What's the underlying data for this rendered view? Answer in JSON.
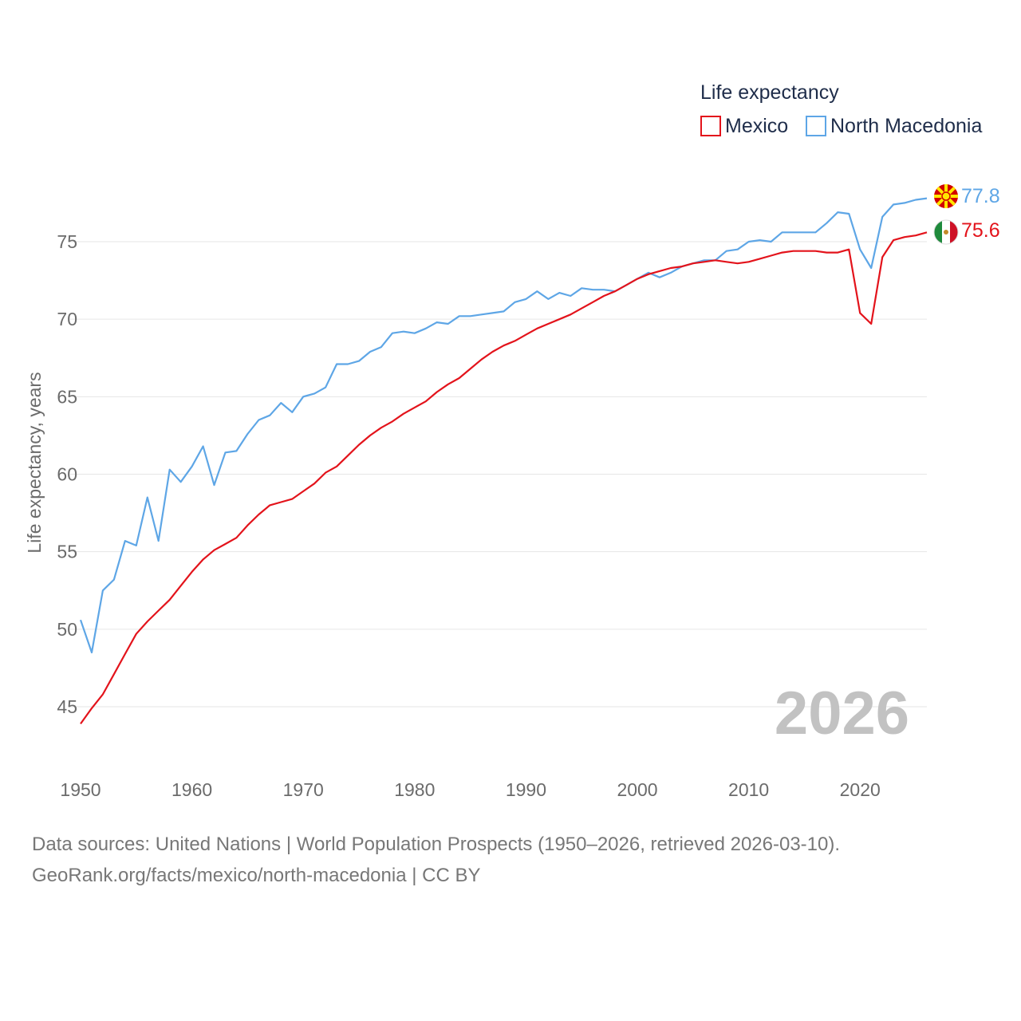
{
  "chart_data": {
    "type": "line",
    "title": "",
    "legend_title": "Life expectancy",
    "legend_position": "top-right",
    "xlabel": "",
    "ylabel": "Life expectancy, years",
    "xlim": [
      1950,
      2026
    ],
    "ylim": [
      42.5,
      79
    ],
    "x_ticks": [
      1950,
      1960,
      1970,
      1980,
      1990,
      2000,
      2010,
      2020
    ],
    "y_ticks": [
      45,
      50,
      55,
      60,
      65,
      70,
      75
    ],
    "grid": true,
    "big_year": "2026",
    "x": [
      1950,
      1951,
      1952,
      1953,
      1954,
      1955,
      1956,
      1957,
      1958,
      1959,
      1960,
      1961,
      1962,
      1963,
      1964,
      1965,
      1966,
      1967,
      1968,
      1969,
      1970,
      1971,
      1972,
      1973,
      1974,
      1975,
      1976,
      1977,
      1978,
      1979,
      1980,
      1981,
      1982,
      1983,
      1984,
      1985,
      1986,
      1987,
      1988,
      1989,
      1990,
      1991,
      1992,
      1993,
      1994,
      1995,
      1996,
      1997,
      1998,
      1999,
      2000,
      2001,
      2002,
      2003,
      2004,
      2005,
      2006,
      2007,
      2008,
      2009,
      2010,
      2011,
      2012,
      2013,
      2014,
      2015,
      2016,
      2017,
      2018,
      2019,
      2020,
      2021,
      2022,
      2023,
      2024,
      2025,
      2026
    ],
    "series": [
      {
        "name": "Mexico",
        "color": "#e3131b",
        "end_label": "75.6",
        "flag": "mexico-flag-icon",
        "values": [
          43.9,
          44.9,
          45.8,
          47.1,
          48.4,
          49.7,
          50.5,
          51.2,
          51.9,
          52.8,
          53.7,
          54.5,
          55.1,
          55.5,
          55.9,
          56.7,
          57.4,
          58.0,
          58.2,
          58.4,
          58.9,
          59.4,
          60.1,
          60.5,
          61.2,
          61.9,
          62.5,
          63.0,
          63.4,
          63.9,
          64.3,
          64.7,
          65.3,
          65.8,
          66.2,
          66.8,
          67.4,
          67.9,
          68.3,
          68.6,
          69.0,
          69.4,
          69.7,
          70.0,
          70.3,
          70.7,
          71.1,
          71.5,
          71.8,
          72.2,
          72.6,
          72.9,
          73.1,
          73.3,
          73.4,
          73.6,
          73.7,
          73.8,
          73.7,
          73.6,
          73.7,
          73.9,
          74.1,
          74.3,
          74.4,
          74.4,
          74.4,
          74.3,
          74.3,
          74.5,
          70.4,
          69.7,
          74.0,
          75.1,
          75.3,
          75.4,
          75.6
        ]
      },
      {
        "name": "North Macedonia",
        "color": "#5ea6e6",
        "end_label": "77.8",
        "flag": "north-macedonia-flag-icon",
        "values": [
          50.6,
          48.5,
          52.5,
          53.2,
          55.7,
          55.4,
          58.5,
          55.7,
          60.3,
          59.5,
          60.5,
          61.8,
          59.3,
          61.4,
          61.5,
          62.6,
          63.5,
          63.8,
          64.6,
          64.0,
          65.0,
          65.2,
          65.6,
          67.1,
          67.1,
          67.3,
          67.9,
          68.2,
          69.1,
          69.2,
          69.1,
          69.4,
          69.8,
          69.7,
          70.2,
          70.2,
          70.3,
          70.4,
          70.5,
          71.1,
          71.3,
          71.8,
          71.3,
          71.7,
          71.5,
          72.0,
          71.9,
          71.9,
          71.8,
          72.2,
          72.6,
          73.0,
          72.7,
          73.0,
          73.4,
          73.6,
          73.8,
          73.8,
          74.4,
          74.5,
          75.0,
          75.1,
          75.0,
          75.6,
          75.6,
          75.6,
          75.6,
          76.2,
          76.9,
          76.8,
          74.5,
          73.3,
          76.6,
          77.4,
          77.5,
          77.7,
          77.8
        ]
      }
    ],
    "footer_line1": "Data sources: United Nations | World Population Prospects (1950–2026, retrieved 2026-03-10).",
    "footer_line2": "GeoRank.org/facts/mexico/north-macedonia | CC BY"
  }
}
